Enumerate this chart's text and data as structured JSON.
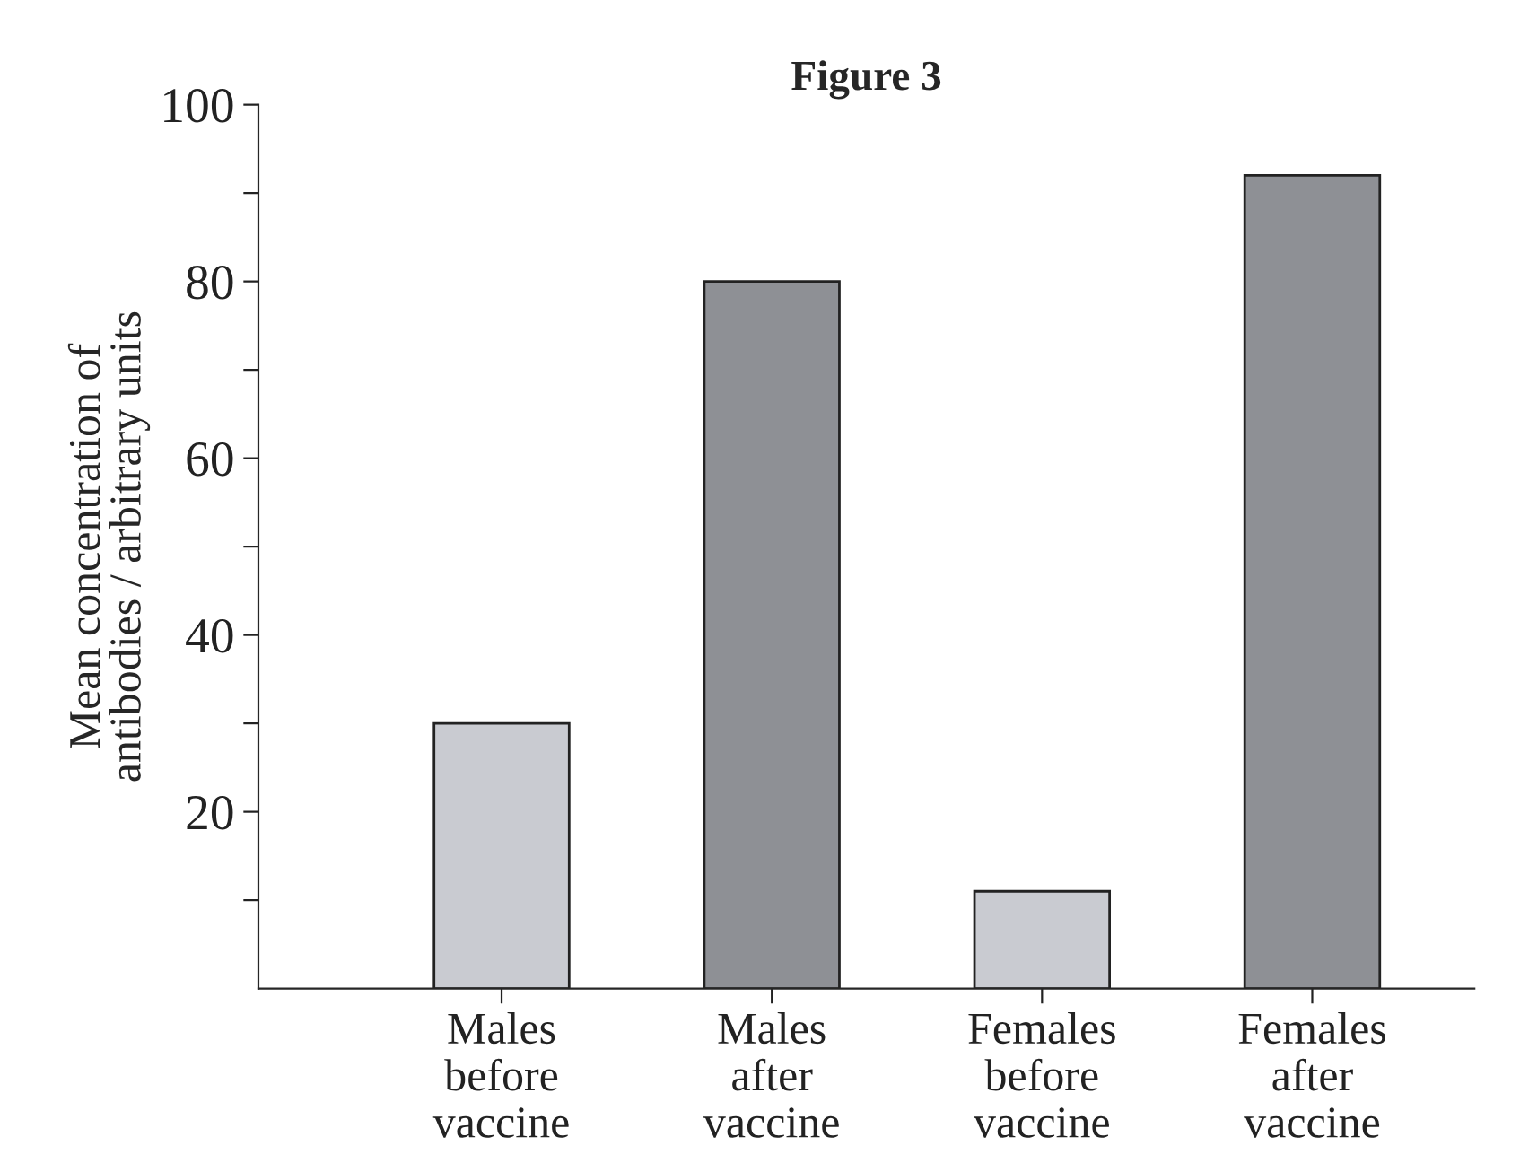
{
  "chart_data": {
    "type": "bar",
    "title": "Figure 3",
    "ylabel": "Mean concentration of\nantibodies / arbitrary units",
    "categories": [
      "Males\nbefore\nvaccine",
      "Males\nafter\nvaccine",
      "Females\nbefore\nvaccine",
      "Females\nafter\nvaccine"
    ],
    "values": [
      30,
      80,
      11,
      92
    ],
    "colors": [
      "#c9cbd1",
      "#8e9095",
      "#c9cbd1",
      "#8e9095"
    ],
    "ylim": [
      0,
      100
    ],
    "yticks": [
      {
        "value": 10,
        "label": null
      },
      20,
      {
        "value": 30,
        "label": null
      },
      40,
      {
        "value": 50,
        "label": null
      },
      60,
      {
        "value": 70,
        "label": null
      },
      80,
      {
        "value": 90,
        "label": null
      },
      100
    ],
    "grid": false
  }
}
